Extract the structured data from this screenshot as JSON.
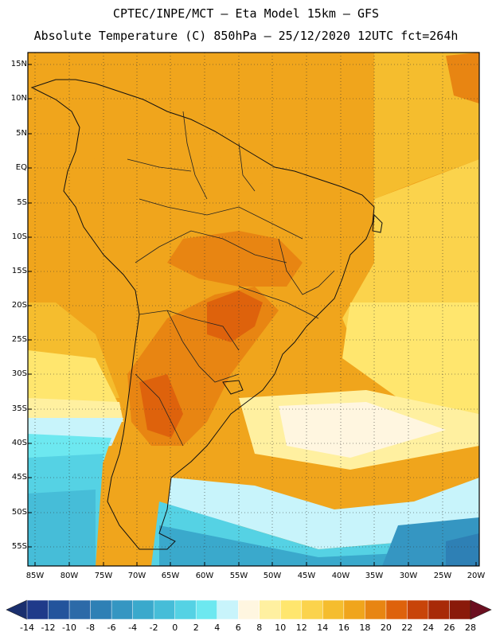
{
  "header": {
    "line1": "CPTEC/INPE/MCT –  Eta Model 15km – GFS",
    "line2": "Absolute Temperature (C) 850hPa – 25/12/2020 12UTC fct=264h"
  },
  "map": {
    "lat_ticks": [
      "15N",
      "10N",
      "5N",
      "EQ",
      "5S",
      "10S",
      "15S",
      "20S",
      "25S",
      "30S",
      "35S",
      "40S",
      "45S",
      "50S",
      "55S"
    ],
    "lon_ticks": [
      "85W",
      "80W",
      "75W",
      "70W",
      "65W",
      "60W",
      "55W",
      "50W",
      "45W",
      "40W",
      "35W",
      "30W",
      "25W",
      "20W"
    ],
    "lat_values": [
      15,
      10,
      5,
      0,
      -5,
      -10,
      -15,
      -20,
      -25,
      -30,
      -35,
      -40,
      -45,
      -50,
      -55
    ],
    "lon_values": [
      -85,
      -80,
      -75,
      -70,
      -65,
      -60,
      -55,
      -50,
      -45,
      -40,
      -35,
      -30,
      -25,
      -20
    ]
  },
  "colorbar": {
    "labels": [
      "-14",
      "-12",
      "-10",
      "-8",
      "-6",
      "-4",
      "-2",
      "0",
      "2",
      "4",
      "6",
      "8",
      "10",
      "12",
      "14",
      "16",
      "18",
      "20",
      "22",
      "24",
      "26",
      "28"
    ],
    "colors": [
      "#1f3a8a",
      "#23549c",
      "#2c6aa8",
      "#2e80b5",
      "#3596c2",
      "#3aa9cc",
      "#46bdd8",
      "#55d2e4",
      "#6de8f0",
      "#c8f4fb",
      "#fff6e0",
      "#fff0a0",
      "#ffe66e",
      "#fbd34c",
      "#f5bd2e",
      "#f0a51c",
      "#e88512",
      "#de620c",
      "#c8440a",
      "#a82a08",
      "#8a1a0a"
    ],
    "end_low": "#1a2f6e",
    "end_high": "#6b0f20"
  }
}
